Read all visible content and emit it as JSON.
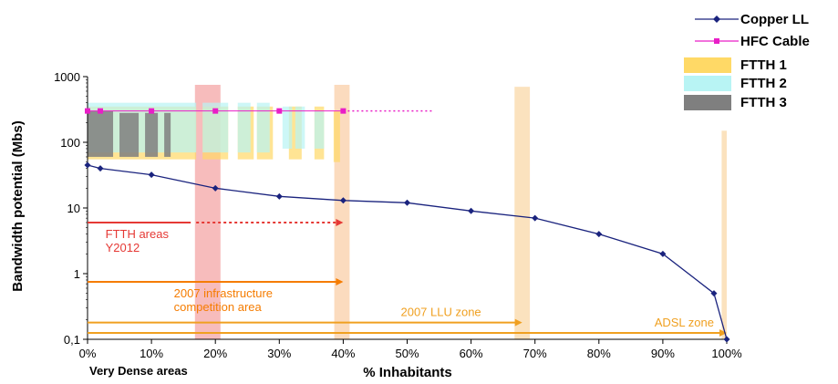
{
  "chart_data": {
    "type": "line",
    "ylabel": "Bandwidth potential (Mbs)",
    "xlabel": "% Inhabitants",
    "x_sub_label": "Very Dense areas",
    "xlim": [
      0,
      100
    ],
    "ylim": [
      0.1,
      1000
    ],
    "y_scale": "log",
    "x_ticks": [
      0,
      10,
      20,
      30,
      40,
      50,
      60,
      70,
      80,
      90,
      100
    ],
    "x_tick_labels": [
      "0%",
      "10%",
      "20%",
      "30%",
      "40%",
      "50%",
      "60%",
      "70%",
      "80%",
      "90%",
      "100%"
    ],
    "y_ticks": [
      0.1,
      1,
      10,
      100,
      1000
    ],
    "y_tick_labels": [
      "0,1",
      "1",
      "10",
      "100",
      "1000"
    ],
    "legend_position": "top-right",
    "series": [
      {
        "name": "Copper LL",
        "color": "#1a237e",
        "marker": "diamond",
        "x": [
          0,
          2,
          10,
          20,
          30,
          40,
          50,
          60,
          70,
          80,
          90,
          98,
          100
        ],
        "y": [
          45,
          40,
          32,
          20,
          15,
          13,
          12,
          9,
          7,
          4,
          2,
          0.5,
          0.1
        ]
      },
      {
        "name": "HFC Cable",
        "color": "#e91ec7",
        "marker": "square",
        "x": [
          0,
          2,
          10,
          20,
          30,
          40
        ],
        "y": [
          300,
          300,
          300,
          300,
          300,
          300
        ],
        "dotted_extension_to_x": 54
      }
    ],
    "bar_series": [
      {
        "name": "FTTH 1",
        "color": "#ffd966",
        "bars": [
          {
            "x0": 0,
            "x1": 17,
            "y0": 55,
            "y1": 350
          },
          {
            "x0": 18,
            "x1": 22,
            "y0": 55,
            "y1": 350
          },
          {
            "x0": 23.5,
            "x1": 26,
            "y0": 55,
            "y1": 350
          },
          {
            "x0": 26.5,
            "x1": 29,
            "y0": 55,
            "y1": 350
          },
          {
            "x0": 31.5,
            "x1": 33.5,
            "y0": 55,
            "y1": 350
          },
          {
            "x0": 35.5,
            "x1": 37,
            "y0": 55,
            "y1": 350
          },
          {
            "x0": 38.5,
            "x1": 39.5,
            "y0": 50,
            "y1": 300
          }
        ]
      },
      {
        "name": "FTTH 2",
        "color": "#b8f4f4",
        "bars": [
          {
            "x0": 0,
            "x1": 17,
            "y0": 70,
            "y1": 400
          },
          {
            "x0": 18,
            "x1": 22,
            "y0": 70,
            "y1": 400
          },
          {
            "x0": 23.5,
            "x1": 25.5,
            "y0": 70,
            "y1": 400
          },
          {
            "x0": 26.5,
            "x1": 28.5,
            "y0": 70,
            "y1": 400
          },
          {
            "x0": 30.5,
            "x1": 32,
            "y0": 80,
            "y1": 350
          },
          {
            "x0": 32.5,
            "x1": 34,
            "y0": 80,
            "y1": 350
          },
          {
            "x0": 35.5,
            "x1": 37,
            "y0": 80,
            "y1": 300
          }
        ]
      },
      {
        "name": "FTTH 3",
        "color": "#7f7f7f",
        "bars": [
          {
            "x0": 0,
            "x1": 4,
            "y0": 60,
            "y1": 300
          },
          {
            "x0": 5,
            "x1": 8,
            "y0": 60,
            "y1": 280
          },
          {
            "x0": 9,
            "x1": 11,
            "y0": 60,
            "y1": 280
          },
          {
            "x0": 12,
            "x1": 13,
            "y0": 60,
            "y1": 280
          }
        ]
      }
    ],
    "bands": [
      {
        "x0": 16.8,
        "x1": 20.8,
        "y_top": 750,
        "color": "#f4a6a6"
      },
      {
        "x0": 38.6,
        "x1": 41.0,
        "y_top": 750,
        "color": "#f9cfa8"
      },
      {
        "x0": 66.8,
        "x1": 69.2,
        "y_top": 700,
        "color": "#f9d8a8"
      },
      {
        "x0": 99.2,
        "x1": 100,
        "y_top": 150,
        "color": "#f9d8a8"
      }
    ],
    "arrows": [
      {
        "x0": 0,
        "x1": 17,
        "x_dotted_end": 40,
        "y": 6,
        "color": "#e53935",
        "label_lines": [
          "FTTH areas",
          "Y2012"
        ]
      },
      {
        "x0": 0,
        "x1": 40,
        "y": 0.75,
        "color": "#f57c00",
        "label_lines": [
          "2007 infrastructure",
          "competition area"
        ]
      },
      {
        "x0": 0,
        "x1": 68,
        "y": 0.18,
        "color": "#f0a020",
        "label_lines": [
          "2007 LLU zone"
        ]
      },
      {
        "x0": 0,
        "x1": 100,
        "y": 0.125,
        "color": "#f0a020",
        "label_lines": [
          "ADSL zone"
        ]
      }
    ]
  }
}
